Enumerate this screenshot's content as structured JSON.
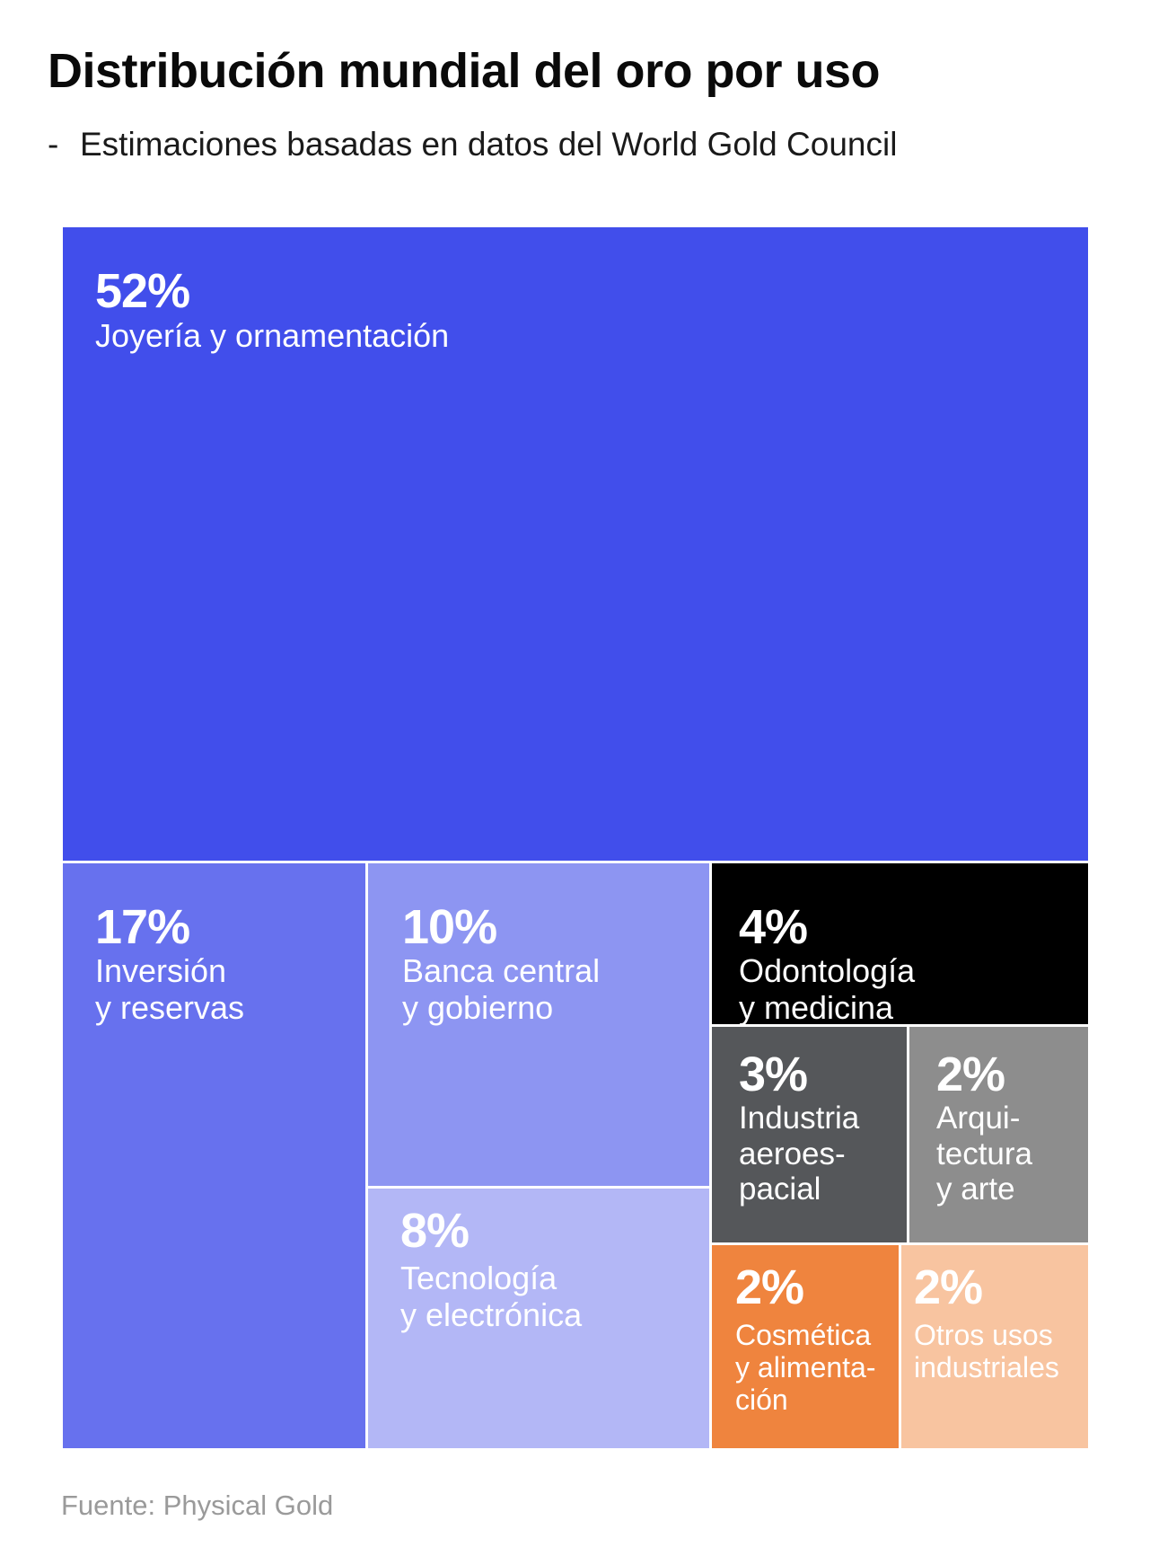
{
  "title": "Distribución mundial del oro por uso",
  "subtitle_dash": "-",
  "subtitle": "Estimaciones basadas en datos del World Gold Council",
  "source": "Fuente: Physical Gold",
  "chart_data": {
    "type": "treemap",
    "title": "Distribución mundial del oro por uso",
    "subtitle": "Estimaciones basadas en datos del World Gold Council",
    "unit": "%",
    "items": [
      {
        "key": "joyeria",
        "value": 52,
        "value_label": "52%",
        "label": "Joyería y ornamentación",
        "color": "#414eeb",
        "text_color": "#ffffff"
      },
      {
        "key": "inversion",
        "value": 17,
        "value_label": "17%",
        "label": "Inversión\ny reservas",
        "color": "#6771ee",
        "text_color": "#ffffff"
      },
      {
        "key": "banca",
        "value": 10,
        "value_label": "10%",
        "label": "Banca central\ny gobierno",
        "color": "#8d95f2",
        "text_color": "#ffffff"
      },
      {
        "key": "tecnologia",
        "value": 8,
        "value_label": "8%",
        "label": "Tecnología\ny electrónica",
        "color": "#b3b7f6",
        "text_color": "#ffffff"
      },
      {
        "key": "odontologia",
        "value": 4,
        "value_label": "4%",
        "label": "Odontología\ny medicina",
        "color": "#000000",
        "text_color": "#ffffff"
      },
      {
        "key": "aeroespacial",
        "value": 3,
        "value_label": "3%",
        "label": "Industria\naeroes-\npacial",
        "color": "#55575a",
        "text_color": "#ffffff"
      },
      {
        "key": "arquitectura",
        "value": 2,
        "value_label": "2%",
        "label": "Arqui-\ntectura\ny arte",
        "color": "#8d8d8d",
        "text_color": "#ffffff"
      },
      {
        "key": "cosmetica",
        "value": 2,
        "value_label": "2%",
        "label": "Cosmética\ny alimenta-\nción",
        "color": "#ef843e",
        "text_color": "#ffffff"
      },
      {
        "key": "otros",
        "value": 2,
        "value_label": "2%",
        "label": "Otros usos\nindustriales",
        "color": "#f8c4a0",
        "text_color": "#ffffff"
      }
    ]
  }
}
